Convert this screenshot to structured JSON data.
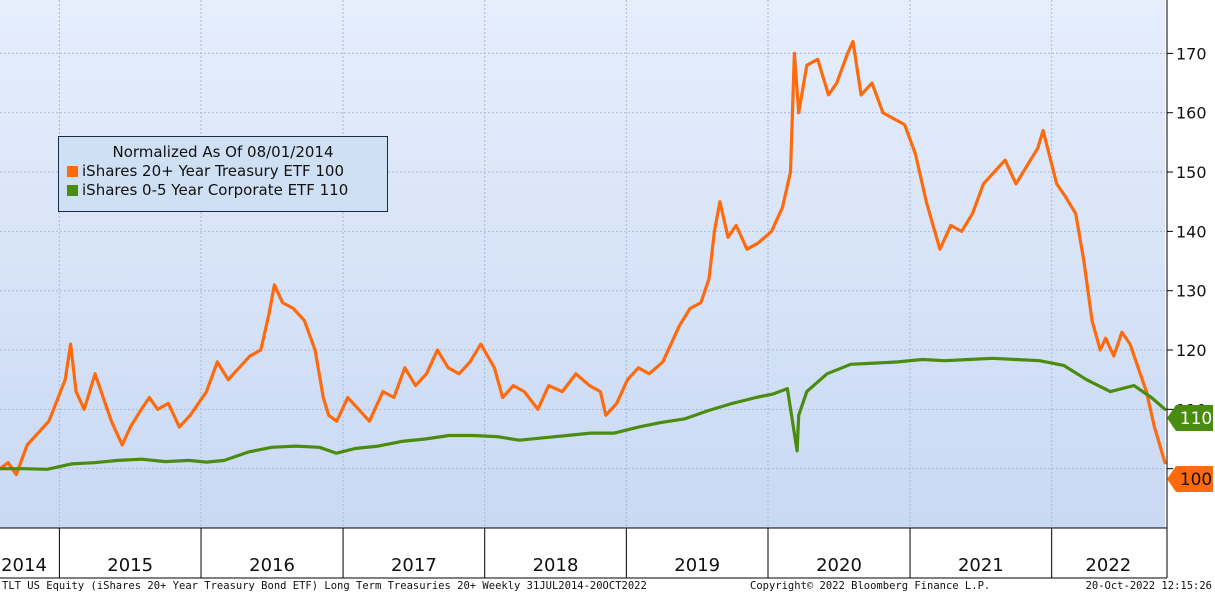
{
  "chart_data": {
    "type": "line",
    "legend": {
      "title": "Normalized As Of 08/01/2014",
      "placement": "upper-left",
      "entries": [
        "iShares 20+ Year Treasury ETF  100",
        "iShares 0-5 Year Corporate ETF 110"
      ]
    },
    "x_range": [
      "2014-08-01",
      "2022-10-20"
    ],
    "x_tick_labels": [
      "2014",
      "2015",
      "2016",
      "2017",
      "2018",
      "2019",
      "2020",
      "2021",
      "2022"
    ],
    "y_range": [
      90,
      179
    ],
    "y_ticks": [
      100,
      110,
      120,
      130,
      140,
      150,
      160,
      170
    ],
    "y_tick_labels": [
      "100",
      "110",
      "120",
      "130",
      "140",
      "150",
      "160",
      "170"
    ],
    "y_axis_side": "right",
    "grid": true,
    "series": [
      {
        "color": "#ff6a0d",
        "last_value_label": "100",
        "points": [
          [
            "2014-08-01",
            100
          ],
          [
            "2014-08-22",
            101
          ],
          [
            "2014-09-12",
            99
          ],
          [
            "2014-10-10",
            104
          ],
          [
            "2014-11-07",
            106
          ],
          [
            "2014-12-05",
            108
          ],
          [
            "2015-01-16",
            115
          ],
          [
            "2015-01-30",
            121
          ],
          [
            "2015-02-13",
            113
          ],
          [
            "2015-03-06",
            110
          ],
          [
            "2015-04-03",
            116
          ],
          [
            "2015-04-24",
            112
          ],
          [
            "2015-05-15",
            108
          ],
          [
            "2015-06-12",
            104
          ],
          [
            "2015-07-03",
            107
          ],
          [
            "2015-07-31",
            110
          ],
          [
            "2015-08-21",
            112
          ],
          [
            "2015-09-11",
            110
          ],
          [
            "2015-10-09",
            111
          ],
          [
            "2015-11-06",
            107
          ],
          [
            "2015-12-04",
            109
          ],
          [
            "2016-01-15",
            113
          ],
          [
            "2016-02-12",
            118
          ],
          [
            "2016-03-11",
            115
          ],
          [
            "2016-04-08",
            117
          ],
          [
            "2016-05-06",
            119
          ],
          [
            "2016-06-03",
            120
          ],
          [
            "2016-06-24",
            126
          ],
          [
            "2016-07-08",
            131
          ],
          [
            "2016-07-29",
            128
          ],
          [
            "2016-08-26",
            127
          ],
          [
            "2016-09-23",
            125
          ],
          [
            "2016-10-21",
            120
          ],
          [
            "2016-11-11",
            112
          ],
          [
            "2016-11-25",
            109
          ],
          [
            "2016-12-16",
            108
          ],
          [
            "2017-01-13",
            112
          ],
          [
            "2017-02-10",
            110
          ],
          [
            "2017-03-10",
            108
          ],
          [
            "2017-04-14",
            113
          ],
          [
            "2017-05-12",
            112
          ],
          [
            "2017-06-09",
            117
          ],
          [
            "2017-07-07",
            114
          ],
          [
            "2017-08-04",
            116
          ],
          [
            "2017-09-01",
            120
          ],
          [
            "2017-09-29",
            117
          ],
          [
            "2017-10-27",
            116
          ],
          [
            "2017-11-24",
            118
          ],
          [
            "2017-12-22",
            121
          ],
          [
            "2018-01-26",
            117
          ],
          [
            "2018-02-16",
            112
          ],
          [
            "2018-03-16",
            114
          ],
          [
            "2018-04-13",
            113
          ],
          [
            "2018-05-18",
            110
          ],
          [
            "2018-06-15",
            114
          ],
          [
            "2018-07-20",
            113
          ],
          [
            "2018-08-24",
            116
          ],
          [
            "2018-09-28",
            114
          ],
          [
            "2018-10-26",
            113
          ],
          [
            "2018-11-09",
            109
          ],
          [
            "2018-12-07",
            111
          ],
          [
            "2019-01-04",
            115
          ],
          [
            "2019-02-01",
            117
          ],
          [
            "2019-03-01",
            116
          ],
          [
            "2019-04-05",
            118
          ],
          [
            "2019-05-17",
            124
          ],
          [
            "2019-06-14",
            127
          ],
          [
            "2019-07-12",
            128
          ],
          [
            "2019-08-02",
            132
          ],
          [
            "2019-08-16",
            140
          ],
          [
            "2019-08-30",
            145
          ],
          [
            "2019-09-20",
            139
          ],
          [
            "2019-10-11",
            141
          ],
          [
            "2019-11-08",
            137
          ],
          [
            "2019-12-06",
            138
          ],
          [
            "2020-01-10",
            140
          ],
          [
            "2020-02-07",
            144
          ],
          [
            "2020-02-28",
            150
          ],
          [
            "2020-03-09",
            170
          ],
          [
            "2020-03-20",
            160
          ],
          [
            "2020-04-10",
            168
          ],
          [
            "2020-05-08",
            169
          ],
          [
            "2020-06-05",
            163
          ],
          [
            "2020-06-26",
            165
          ],
          [
            "2020-07-24",
            170
          ],
          [
            "2020-08-07",
            172
          ],
          [
            "2020-08-28",
            163
          ],
          [
            "2020-09-25",
            165
          ],
          [
            "2020-10-23",
            160
          ],
          [
            "2020-11-20",
            159
          ],
          [
            "2020-12-18",
            158
          ],
          [
            "2021-01-15",
            153
          ],
          [
            "2021-02-12",
            145
          ],
          [
            "2021-03-19",
            137
          ],
          [
            "2021-04-16",
            141
          ],
          [
            "2021-05-14",
            140
          ],
          [
            "2021-06-11",
            143
          ],
          [
            "2021-07-09",
            148
          ],
          [
            "2021-08-06",
            150
          ],
          [
            "2021-09-03",
            152
          ],
          [
            "2021-10-01",
            148
          ],
          [
            "2021-10-29",
            151
          ],
          [
            "2021-11-26",
            154
          ],
          [
            "2021-12-10",
            157
          ],
          [
            "2022-01-14",
            148
          ],
          [
            "2022-02-04",
            146
          ],
          [
            "2022-03-04",
            143
          ],
          [
            "2022-03-25",
            135
          ],
          [
            "2022-04-15",
            125
          ],
          [
            "2022-05-06",
            120
          ],
          [
            "2022-05-20",
            122
          ],
          [
            "2022-06-10",
            119
          ],
          [
            "2022-07-01",
            123
          ],
          [
            "2022-07-22",
            121
          ],
          [
            "2022-08-12",
            117
          ],
          [
            "2022-09-02",
            113
          ],
          [
            "2022-09-23",
            107
          ],
          [
            "2022-10-20",
            101
          ]
        ]
      },
      {
        "color": "#4a8c0f",
        "last_value_label": "110",
        "points": [
          [
            "2014-08-01",
            100
          ],
          [
            "2014-10-01",
            100
          ],
          [
            "2014-12-01",
            99.9
          ],
          [
            "2015-02-01",
            100.8
          ],
          [
            "2015-04-01",
            101
          ],
          [
            "2015-06-01",
            101.4
          ],
          [
            "2015-08-01",
            101.6
          ],
          [
            "2015-10-01",
            101.2
          ],
          [
            "2015-12-01",
            101.4
          ],
          [
            "2016-01-15",
            101.1
          ],
          [
            "2016-03-01",
            101.4
          ],
          [
            "2016-05-01",
            102.8
          ],
          [
            "2016-07-01",
            103.6
          ],
          [
            "2016-09-01",
            103.8
          ],
          [
            "2016-11-01",
            103.6
          ],
          [
            "2016-12-15",
            102.6
          ],
          [
            "2017-02-01",
            103.4
          ],
          [
            "2017-04-01",
            103.8
          ],
          [
            "2017-06-01",
            104.6
          ],
          [
            "2017-08-01",
            105
          ],
          [
            "2017-10-01",
            105.6
          ],
          [
            "2017-12-01",
            105.6
          ],
          [
            "2018-02-01",
            105.4
          ],
          [
            "2018-04-01",
            104.8
          ],
          [
            "2018-06-01",
            105.2
          ],
          [
            "2018-08-01",
            105.6
          ],
          [
            "2018-10-01",
            106
          ],
          [
            "2018-12-01",
            106
          ],
          [
            "2019-02-01",
            107
          ],
          [
            "2019-04-01",
            107.8
          ],
          [
            "2019-06-01",
            108.4
          ],
          [
            "2019-08-01",
            109.8
          ],
          [
            "2019-10-01",
            111
          ],
          [
            "2019-12-01",
            112
          ],
          [
            "2020-01-15",
            112.6
          ],
          [
            "2020-02-20",
            113.5
          ],
          [
            "2020-03-16",
            103
          ],
          [
            "2020-03-20",
            109
          ],
          [
            "2020-04-10",
            113
          ],
          [
            "2020-06-01",
            116
          ],
          [
            "2020-08-01",
            117.6
          ],
          [
            "2020-10-01",
            117.8
          ],
          [
            "2020-12-01",
            118
          ],
          [
            "2021-02-01",
            118.4
          ],
          [
            "2021-04-01",
            118.2
          ],
          [
            "2021-06-01",
            118.4
          ],
          [
            "2021-08-01",
            118.6
          ],
          [
            "2021-10-01",
            118.4
          ],
          [
            "2021-12-01",
            118.2
          ],
          [
            "2022-02-01",
            117.4
          ],
          [
            "2022-04-01",
            115
          ],
          [
            "2022-06-01",
            113
          ],
          [
            "2022-08-01",
            114
          ],
          [
            "2022-09-15",
            112
          ],
          [
            "2022-10-20",
            110
          ]
        ]
      }
    ]
  },
  "footer": {
    "left": "TLT US Equity (iShares 20+ Year Treasury Bond ETF) Long Term Treasuries 20+  Weekly 31JUL2014-20OCT2022",
    "center": "Copyright© 2022 Bloomberg Finance L.P.",
    "right": "20-Oct-2022 12:15:26"
  }
}
